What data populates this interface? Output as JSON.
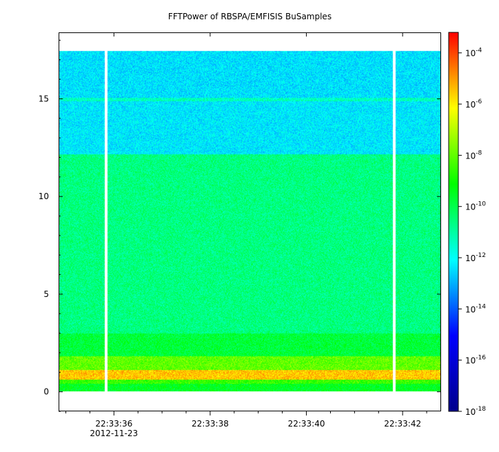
{
  "chart_data": {
    "type": "heatmap",
    "title": "FFTPower of RBSPA/EMFISIS  BuSamples",
    "xlabel": "",
    "ylabel": "",
    "x_ticks": [
      {
        "t": 1.0,
        "label": "22:33:36",
        "sublabel": "2012-11-23"
      },
      {
        "t": 3.0,
        "label": "22:33:38",
        "sublabel": ""
      },
      {
        "t": 5.0,
        "label": "22:33:40",
        "sublabel": ""
      },
      {
        "t": 7.0,
        "label": "22:33:42",
        "sublabel": ""
      }
    ],
    "x_range_seconds_after_22_33_35": [
      -0.15,
      7.8
    ],
    "y_range": [
      -1,
      18.4
    ],
    "y_ticks": [
      0,
      5,
      10,
      15
    ],
    "y_data_extent": [
      0,
      17.5
    ],
    "data_gaps_seconds_after_22_33_35": [
      0.83,
      6.82
    ],
    "bands": [
      {
        "y_from": 0.0,
        "y_to": 0.4,
        "log_power": -9.5
      },
      {
        "y_from": 0.4,
        "y_to": 0.6,
        "log_power": -8.5
      },
      {
        "y_from": 0.6,
        "y_to": 1.1,
        "log_power": -5.5
      },
      {
        "y_from": 1.1,
        "y_to": 1.8,
        "log_power": -8.0
      },
      {
        "y_from": 1.8,
        "y_to": 3.0,
        "log_power": -9.8
      },
      {
        "y_from": 3.0,
        "y_to": 12.2,
        "log_power": -10.6
      },
      {
        "y_from": 12.2,
        "y_to": 14.9,
        "log_power": -12.3
      },
      {
        "y_from": 14.9,
        "y_to": 15.1,
        "log_power": -11.3
      },
      {
        "y_from": 15.1,
        "y_to": 17.5,
        "log_power": -12.4
      }
    ],
    "colorbar": {
      "scale": "log",
      "range_exponent": [
        -18,
        -3.2
      ],
      "tick_exponents": [
        -4,
        -6,
        -8,
        -10,
        -12,
        -14,
        -16,
        -18
      ],
      "tick_base": "10",
      "colors": [
        "#00008b",
        "#0000ff",
        "#00ffff",
        "#00ff00",
        "#ffff00",
        "#ff0000"
      ]
    }
  }
}
